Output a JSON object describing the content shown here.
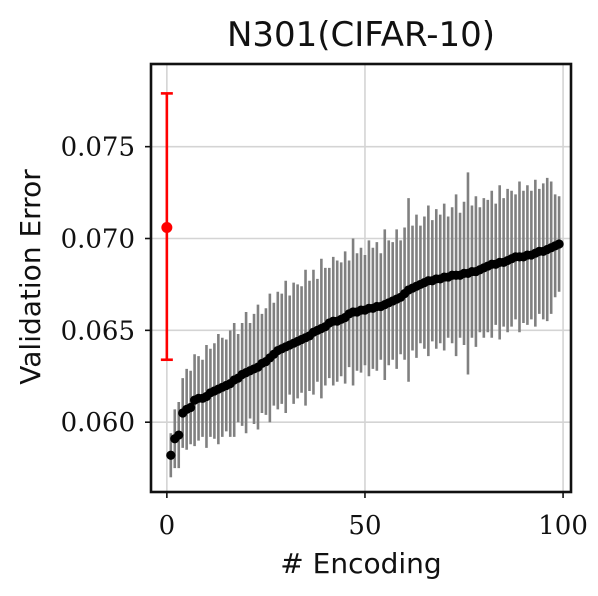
{
  "chart_data": {
    "type": "scatter",
    "title": "N301(CIFAR-10)",
    "xlabel": "# Encoding",
    "ylabel": "Validation Error",
    "xlim": [
      -4,
      102
    ],
    "ylim": [
      0.0562,
      0.0795
    ],
    "xticks": [
      "0",
      "50",
      "100"
    ],
    "xtick_values": [
      0,
      50,
      100
    ],
    "yticks": [
      "0.060",
      "0.065",
      "0.070",
      "0.075"
    ],
    "ytick_values": [
      0.06,
      0.065,
      0.07,
      0.075
    ],
    "grid": true,
    "baseline": {
      "x": 0,
      "y": 0.0706,
      "y_low": 0.0634,
      "y_high": 0.0779,
      "color": "#ff0000"
    },
    "series": [
      {
        "color": "#000000",
        "errorbar_color": "#808080",
        "x": [
          1,
          2,
          3,
          4,
          5,
          6,
          7,
          8,
          9,
          10,
          11,
          12,
          13,
          14,
          15,
          16,
          17,
          18,
          19,
          20,
          21,
          22,
          23,
          24,
          25,
          26,
          27,
          28,
          29,
          30,
          31,
          32,
          33,
          34,
          35,
          36,
          37,
          38,
          39,
          40,
          41,
          42,
          43,
          44,
          45,
          46,
          47,
          48,
          49,
          50,
          51,
          52,
          53,
          54,
          55,
          56,
          57,
          58,
          59,
          60,
          61,
          62,
          63,
          64,
          65,
          66,
          67,
          68,
          69,
          70,
          71,
          72,
          73,
          74,
          75,
          76,
          77,
          78,
          79,
          80,
          81,
          82,
          83,
          84,
          85,
          86,
          87,
          88,
          89,
          90,
          91,
          92,
          93,
          94,
          95,
          96,
          97,
          98,
          99
        ],
        "y": [
          0.0582,
          0.0591,
          0.0593,
          0.0605,
          0.0607,
          0.0608,
          0.0612,
          0.0613,
          0.0613,
          0.0614,
          0.0616,
          0.0617,
          0.0618,
          0.0619,
          0.062,
          0.0621,
          0.0623,
          0.0624,
          0.0626,
          0.0627,
          0.0628,
          0.0629,
          0.063,
          0.0632,
          0.0633,
          0.0635,
          0.0637,
          0.0639,
          0.064,
          0.0641,
          0.0642,
          0.0643,
          0.0644,
          0.0645,
          0.0646,
          0.0647,
          0.0649,
          0.065,
          0.0651,
          0.0652,
          0.0654,
          0.0655,
          0.0655,
          0.0656,
          0.0657,
          0.0659,
          0.066,
          0.066,
          0.0661,
          0.0661,
          0.0662,
          0.0662,
          0.0663,
          0.0663,
          0.0664,
          0.0665,
          0.0666,
          0.0667,
          0.0668,
          0.067,
          0.0672,
          0.0673,
          0.0674,
          0.0675,
          0.0676,
          0.0677,
          0.0677,
          0.0678,
          0.0678,
          0.0679,
          0.0679,
          0.068,
          0.068,
          0.068,
          0.0681,
          0.0681,
          0.0682,
          0.0682,
          0.0683,
          0.0684,
          0.0685,
          0.0686,
          0.0686,
          0.0687,
          0.0687,
          0.0688,
          0.0689,
          0.069,
          0.069,
          0.069,
          0.0691,
          0.0691,
          0.0692,
          0.0693,
          0.0693,
          0.0694,
          0.0695,
          0.0696,
          0.0697
        ],
        "y_err": [
          0.0012,
          0.0016,
          0.0018,
          0.0019,
          0.0022,
          0.002,
          0.0025,
          0.0023,
          0.0021,
          0.0028,
          0.0024,
          0.0026,
          0.003,
          0.0027,
          0.0025,
          0.0029,
          0.0031,
          0.0024,
          0.0028,
          0.0033,
          0.0026,
          0.003,
          0.0034,
          0.0027,
          0.0029,
          0.0035,
          0.0028,
          0.0032,
          0.003,
          0.0036,
          0.0027,
          0.0033,
          0.0031,
          0.0029,
          0.0037,
          0.003,
          0.0034,
          0.0028,
          0.0038,
          0.0032,
          0.003,
          0.0035,
          0.0033,
          0.0031,
          0.0036,
          0.0029,
          0.004,
          0.0032,
          0.0034,
          0.003,
          0.0037,
          0.0033,
          0.0035,
          0.0029,
          0.0041,
          0.0034,
          0.0032,
          0.0038,
          0.0031,
          0.0036,
          0.005,
          0.0034,
          0.0039,
          0.0032,
          0.0036,
          0.0041,
          0.0033,
          0.0038,
          0.0035,
          0.004,
          0.0033,
          0.0037,
          0.0044,
          0.0034,
          0.0039,
          0.0055,
          0.0036,
          0.0041,
          0.0034,
          0.0038,
          0.0036,
          0.004,
          0.0033,
          0.0042,
          0.0035,
          0.0039,
          0.0037,
          0.0034,
          0.0041,
          0.0036,
          0.0038,
          0.0035,
          0.004,
          0.0034,
          0.0037,
          0.0039,
          0.0036,
          0.0028,
          0.0026
        ]
      }
    ]
  }
}
